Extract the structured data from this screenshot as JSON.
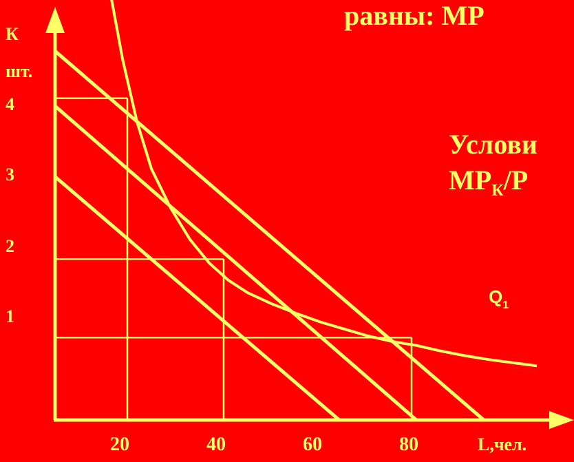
{
  "heading": {
    "top_text": "равны:  МР",
    "condition_text": "Услови",
    "ratio_main": "МР",
    "ratio_sub": "К",
    "ratio_tail": "/Р"
  },
  "chart_data": {
    "type": "line",
    "title": "",
    "xlabel": "L,чел.",
    "ylabel_line1": "К",
    "ylabel_line2": "шт.",
    "x_ticks": [
      "20",
      "40",
      "60",
      "80"
    ],
    "y_ticks": [
      "1",
      "2",
      "3",
      "4"
    ],
    "xlim": [
      0,
      100
    ],
    "ylim": [
      0,
      5
    ],
    "isoquant": {
      "name": "Q",
      "name_sub": "1",
      "points": [
        [
          11,
          5.6
        ],
        [
          14,
          4.6
        ],
        [
          17,
          3.8
        ],
        [
          20,
          3.2
        ],
        [
          24,
          2.7
        ],
        [
          28,
          2.3
        ],
        [
          32,
          2.0
        ],
        [
          36,
          1.78
        ],
        [
          40,
          1.62
        ],
        [
          45,
          1.48
        ],
        [
          50,
          1.36
        ],
        [
          55,
          1.25
        ],
        [
          60,
          1.16
        ],
        [
          65,
          1.07
        ],
        [
          70,
          1.0
        ],
        [
          75,
          0.95
        ],
        [
          80,
          0.88
        ],
        [
          85,
          0.82
        ],
        [
          90,
          0.77
        ],
        [
          95,
          0.73
        ],
        [
          100,
          0.69
        ]
      ]
    },
    "isocosts": [
      {
        "k_intercept": 3.1,
        "l_intercept": 59
      },
      {
        "k_intercept": 4.0,
        "l_intercept": 75
      },
      {
        "k_intercept": 4.7,
        "l_intercept": 89
      }
    ],
    "guides": [
      {
        "x": 15,
        "y": 4.1
      },
      {
        "x": 35,
        "y": 2.05
      },
      {
        "x": 74,
        "y": 1.05
      }
    ]
  }
}
